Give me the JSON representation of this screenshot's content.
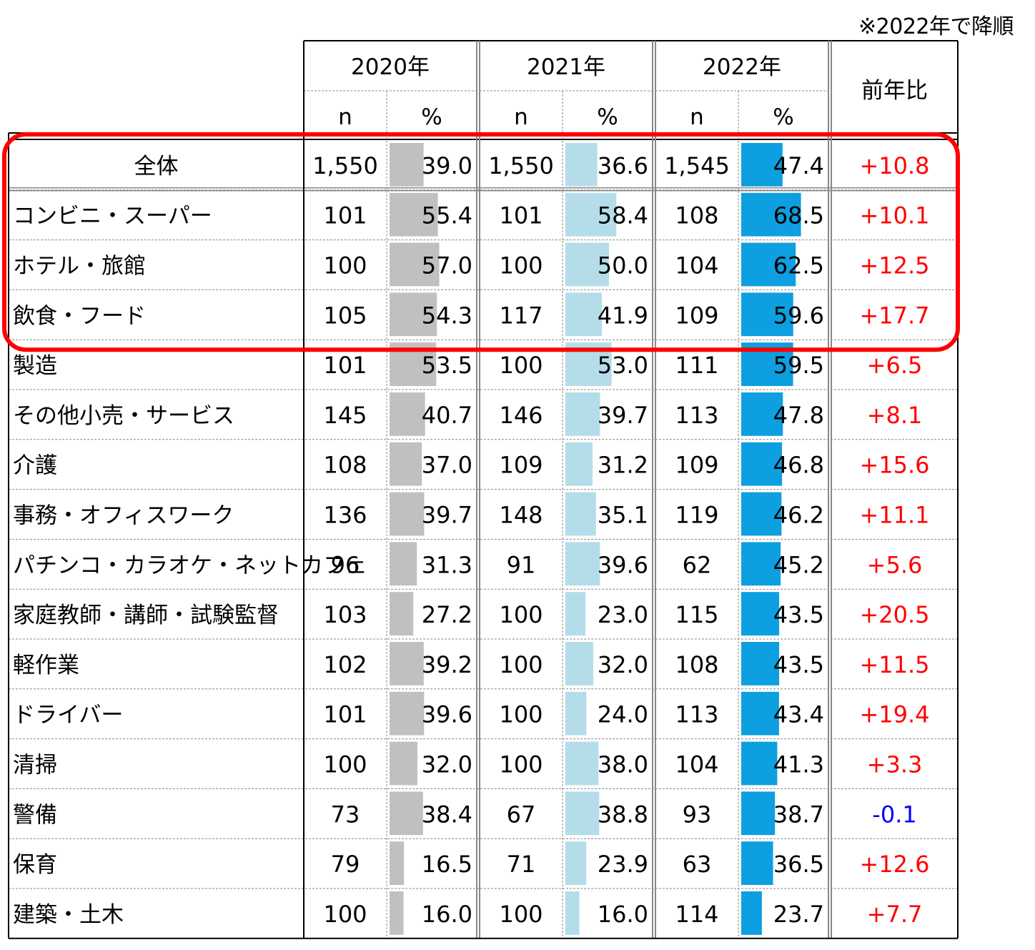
{
  "note": "※2022年で降順",
  "chart_data": {
    "type": "table",
    "title": "",
    "header": {
      "years": [
        "2020年",
        "2021年",
        "2022年"
      ],
      "n_label": "n",
      "pct_label": "%",
      "change_label": "前年比"
    },
    "bar_max": 100,
    "colors": {
      "bar_2020": "#c0c0c0",
      "bar_2021": "#b4dde9",
      "bar_2022": "#0d9fe0",
      "positive": "#ff0000",
      "negative": "#0000ff",
      "highlight": "#ff0000"
    },
    "highlighted_rows": [
      "全体",
      "コンビニ・スーパー",
      "ホテル・旅館",
      "飲食・フード"
    ],
    "rows": [
      {
        "label": "全体",
        "n2020": "1,550",
        "p2020": 39.0,
        "n2021": "1,550",
        "p2021": 36.6,
        "n2022": "1,545",
        "p2022": 47.4,
        "change": "+10.8"
      },
      {
        "label": "コンビニ・スーパー",
        "n2020": "101",
        "p2020": 55.4,
        "n2021": "101",
        "p2021": 58.4,
        "n2022": "108",
        "p2022": 68.5,
        "change": "+10.1"
      },
      {
        "label": "ホテル・旅館",
        "n2020": "100",
        "p2020": 57.0,
        "n2021": "100",
        "p2021": 50.0,
        "n2022": "104",
        "p2022": 62.5,
        "change": "+12.5"
      },
      {
        "label": "飲食・フード",
        "n2020": "105",
        "p2020": 54.3,
        "n2021": "117",
        "p2021": 41.9,
        "n2022": "109",
        "p2022": 59.6,
        "change": "+17.7"
      },
      {
        "label": "製造",
        "n2020": "101",
        "p2020": 53.5,
        "n2021": "100",
        "p2021": 53.0,
        "n2022": "111",
        "p2022": 59.5,
        "change": "+6.5"
      },
      {
        "label": "その他小売・サービス",
        "n2020": "145",
        "p2020": 40.7,
        "n2021": "146",
        "p2021": 39.7,
        "n2022": "113",
        "p2022": 47.8,
        "change": "+8.1"
      },
      {
        "label": "介護",
        "n2020": "108",
        "p2020": 37.0,
        "n2021": "109",
        "p2021": 31.2,
        "n2022": "109",
        "p2022": 46.8,
        "change": "+15.6"
      },
      {
        "label": "事務・オフィスワーク",
        "n2020": "136",
        "p2020": 39.7,
        "n2021": "148",
        "p2021": 35.1,
        "n2022": "119",
        "p2022": 46.2,
        "change": "+11.1"
      },
      {
        "label": "パチンコ・カラオケ・ネットカフェ",
        "n2020": "96",
        "p2020": 31.3,
        "n2021": "91",
        "p2021": 39.6,
        "n2022": "62",
        "p2022": 45.2,
        "change": "+5.6"
      },
      {
        "label": "家庭教師・講師・試験監督",
        "n2020": "103",
        "p2020": 27.2,
        "n2021": "100",
        "p2021": 23.0,
        "n2022": "115",
        "p2022": 43.5,
        "change": "+20.5"
      },
      {
        "label": "軽作業",
        "n2020": "102",
        "p2020": 39.2,
        "n2021": "100",
        "p2021": 32.0,
        "n2022": "108",
        "p2022": 43.5,
        "change": "+11.5"
      },
      {
        "label": "ドライバー",
        "n2020": "101",
        "p2020": 39.6,
        "n2021": "100",
        "p2021": 24.0,
        "n2022": "113",
        "p2022": 43.4,
        "change": "+19.4"
      },
      {
        "label": "清掃",
        "n2020": "100",
        "p2020": 32.0,
        "n2021": "100",
        "p2021": 38.0,
        "n2022": "104",
        "p2022": 41.3,
        "change": "+3.3"
      },
      {
        "label": "警備",
        "n2020": "73",
        "p2020": 38.4,
        "n2021": "67",
        "p2021": 38.8,
        "n2022": "93",
        "p2022": 38.7,
        "change": "-0.1"
      },
      {
        "label": "保育",
        "n2020": "79",
        "p2020": 16.5,
        "n2021": "71",
        "p2021": 23.9,
        "n2022": "63",
        "p2022": 36.5,
        "change": "+12.6"
      },
      {
        "label": "建築・土木",
        "n2020": "100",
        "p2020": 16.0,
        "n2021": "100",
        "p2021": 16.0,
        "n2022": "114",
        "p2022": 23.7,
        "change": "+7.7"
      }
    ]
  }
}
